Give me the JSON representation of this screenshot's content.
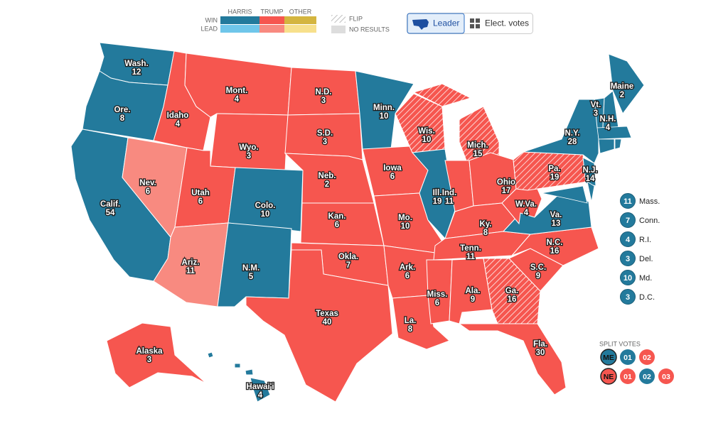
{
  "legend": {
    "columns": [
      "HARRIS",
      "TRUMP",
      "OTHER"
    ],
    "rows": [
      "WIN",
      "LEAD"
    ],
    "colors": {
      "harris": [
        "#237a9c",
        "#6fc6ea"
      ],
      "trump": [
        "#f6564f",
        "#f88a80"
      ],
      "other": [
        "#d4b53f",
        "#f7e08c"
      ]
    },
    "flip": "FLIP",
    "no_results": "NO RESULTS"
  },
  "toggle": [
    "Leader",
    "Elect. votes"
  ],
  "states": [
    {
      "label": "Wash.",
      "votes": 12,
      "party": "harris",
      "status": "win"
    },
    {
      "label": "Ore.",
      "votes": 8,
      "party": "harris",
      "status": "win"
    },
    {
      "label": "Calif.",
      "votes": 54,
      "party": "harris",
      "status": "win"
    },
    {
      "label": "Nev.",
      "votes": 6,
      "party": "trump",
      "status": "lead"
    },
    {
      "label": "Idaho",
      "votes": 4,
      "party": "trump",
      "status": "win"
    },
    {
      "label": "Mont.",
      "votes": 4,
      "party": "trump",
      "status": "win"
    },
    {
      "label": "Wyo.",
      "votes": 3,
      "party": "trump",
      "status": "win"
    },
    {
      "label": "Utah",
      "votes": 6,
      "party": "trump",
      "status": "win"
    },
    {
      "label": "Ariz.",
      "votes": 11,
      "party": "trump",
      "status": "lead"
    },
    {
      "label": "Colo.",
      "votes": 10,
      "party": "harris",
      "status": "win"
    },
    {
      "label": "N.M.",
      "votes": 5,
      "party": "harris",
      "status": "win"
    },
    {
      "label": "N.D.",
      "votes": 3,
      "party": "trump",
      "status": "win"
    },
    {
      "label": "S.D.",
      "votes": 3,
      "party": "trump",
      "status": "win"
    },
    {
      "label": "Neb.",
      "votes": 2,
      "party": "trump",
      "status": "win"
    },
    {
      "label": "Kan.",
      "votes": 6,
      "party": "trump",
      "status": "win"
    },
    {
      "label": "Okla.",
      "votes": 7,
      "party": "trump",
      "status": "win"
    },
    {
      "label": "Texas",
      "votes": 40,
      "party": "trump",
      "status": "win"
    },
    {
      "label": "Minn.",
      "votes": 10,
      "party": "harris",
      "status": "win"
    },
    {
      "label": "Iowa",
      "votes": 6,
      "party": "trump",
      "status": "win"
    },
    {
      "label": "Mo.",
      "votes": 10,
      "party": "trump",
      "status": "win"
    },
    {
      "label": "Ark.",
      "votes": 6,
      "party": "trump",
      "status": "win"
    },
    {
      "label": "La.",
      "votes": 8,
      "party": "trump",
      "status": "win"
    },
    {
      "label": "Wis.",
      "votes": 10,
      "party": "trump",
      "status": "flip"
    },
    {
      "label": "Ill.",
      "votes": 19,
      "party": "harris",
      "status": "win"
    },
    {
      "label": "Mich.",
      "votes": 15,
      "party": "trump",
      "status": "flip"
    },
    {
      "label": "Ind.",
      "votes": 11,
      "party": "trump",
      "status": "win"
    },
    {
      "label": "Ohio",
      "votes": 17,
      "party": "trump",
      "status": "win"
    },
    {
      "label": "Ky.",
      "votes": 8,
      "party": "trump",
      "status": "win"
    },
    {
      "label": "Tenn.",
      "votes": 11,
      "party": "trump",
      "status": "win"
    },
    {
      "label": "Miss.",
      "votes": 6,
      "party": "trump",
      "status": "win"
    },
    {
      "label": "Ala.",
      "votes": 9,
      "party": "trump",
      "status": "win"
    },
    {
      "label": "Ga.",
      "votes": 16,
      "party": "trump",
      "status": "flip"
    },
    {
      "label": "Fla.",
      "votes": 30,
      "party": "trump",
      "status": "win"
    },
    {
      "label": "S.C.",
      "votes": 9,
      "party": "trump",
      "status": "win"
    },
    {
      "label": "N.C.",
      "votes": 16,
      "party": "trump",
      "status": "win"
    },
    {
      "label": "Va.",
      "votes": 13,
      "party": "harris",
      "status": "win"
    },
    {
      "label": "W.Va.",
      "votes": 4,
      "party": "trump",
      "status": "win"
    },
    {
      "label": "Pa.",
      "votes": 19,
      "party": "trump",
      "status": "flip"
    },
    {
      "label": "N.Y.",
      "votes": 28,
      "party": "harris",
      "status": "win"
    },
    {
      "label": "N.J.",
      "votes": 14,
      "party": "harris",
      "status": "win"
    },
    {
      "label": "Vt.",
      "votes": 3,
      "party": "harris",
      "status": "win"
    },
    {
      "label": "N.H.",
      "votes": 4,
      "party": "harris",
      "status": "win"
    },
    {
      "label": "Maine",
      "votes": 2,
      "party": "harris",
      "status": "win"
    },
    {
      "label": "Alaska",
      "votes": 3,
      "party": "trump",
      "status": "win"
    },
    {
      "label": "Hawai'i",
      "votes": 4,
      "party": "harris",
      "status": "win"
    }
  ],
  "small_states": [
    {
      "label": "Mass.",
      "votes": 11,
      "party": "harris"
    },
    {
      "label": "Conn.",
      "votes": 7,
      "party": "harris"
    },
    {
      "label": "R.I.",
      "votes": 4,
      "party": "harris"
    },
    {
      "label": "Del.",
      "votes": 3,
      "party": "harris"
    },
    {
      "label": "Md.",
      "votes": 10,
      "party": "harris"
    },
    {
      "label": "D.C.",
      "votes": 3,
      "party": "harris"
    }
  ],
  "split_votes": {
    "title": "SPLIT VOTES",
    "rows": [
      {
        "label": "ME",
        "party": "harris",
        "districts": [
          {
            "label": "01",
            "party": "harris"
          },
          {
            "label": "02",
            "party": "trump"
          }
        ]
      },
      {
        "label": "NE",
        "party": "trump",
        "districts": [
          {
            "label": "01",
            "party": "trump"
          },
          {
            "label": "02",
            "party": "harris"
          },
          {
            "label": "03",
            "party": "trump"
          }
        ]
      }
    ]
  }
}
